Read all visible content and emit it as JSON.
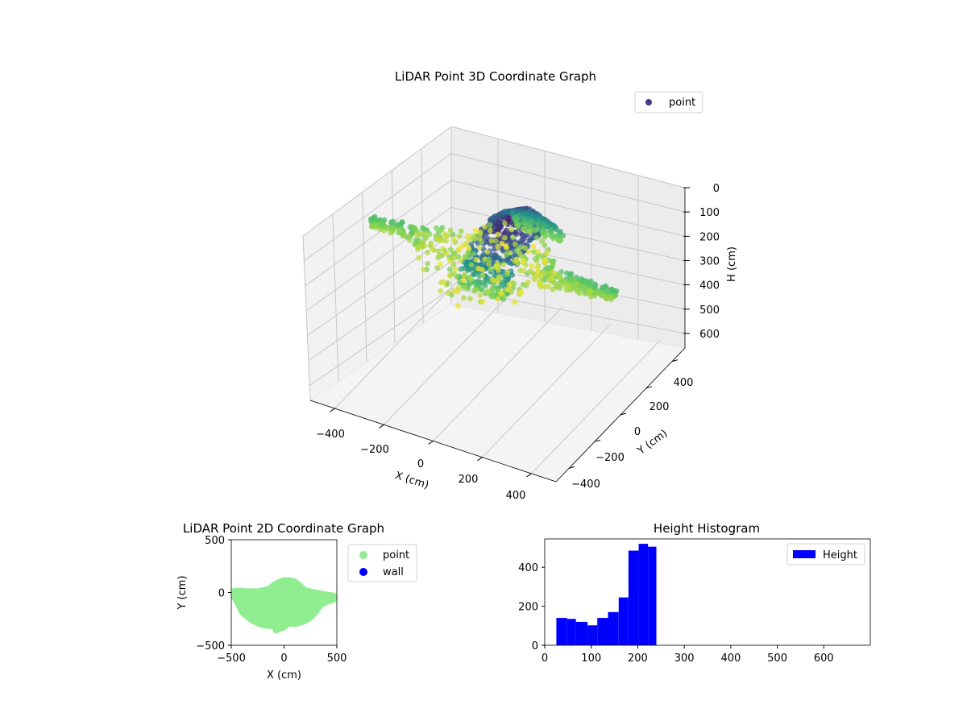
{
  "figure": {
    "colors": {
      "viridis": [
        "#440154",
        "#3b528b",
        "#21918c",
        "#5ec962",
        "#fde725"
      ],
      "point_2d": "#90ee90",
      "wall_2d": "#0000ff",
      "hist_bar": "#0000ff",
      "legend_point_3d": "#3b3f8c"
    }
  },
  "chart_data": [
    {
      "id": "lidar3d",
      "type": "scatter",
      "title": "LiDAR Point 3D Coordinate Graph",
      "xlabel": "X (cm)",
      "ylabel": "Y (cm)",
      "zlabel": "H (cm)",
      "xlim": [
        -500,
        500
      ],
      "ylim": [
        -500,
        500
      ],
      "zlim": [
        660,
        0
      ],
      "z_inverted": true,
      "x_ticks": [
        -400,
        -200,
        0,
        200,
        400
      ],
      "y_ticks": [
        -400,
        -200,
        0,
        200,
        400
      ],
      "z_ticks": [
        0,
        100,
        200,
        300,
        400,
        500,
        600
      ],
      "x_tick_labels": [
        "−400",
        "−200",
        "0",
        "200",
        "400"
      ],
      "y_tick_labels": [
        "−400",
        "−200",
        "0",
        "200",
        "400"
      ],
      "z_tick_labels": [
        "0",
        "100",
        "200",
        "300",
        "400",
        "500",
        "600"
      ],
      "legend": [
        "point"
      ],
      "legend_position": "top-right",
      "grid": true,
      "colormap": "viridis",
      "color_by": "height",
      "series": [
        {
          "name": "point",
          "profile": {
            "y_center": [
              -30,
              -20,
              -10,
              0,
              5,
              10,
              12,
              0,
              -15,
              -10,
              0,
              5,
              10,
              10,
              5,
              10,
              5,
              15
            ],
            "y_half": [
              5,
              10,
              15,
              60,
              120,
              190,
              230,
              250,
              260,
              255,
              240,
              200,
              150,
              60,
              40,
              25,
              15,
              5
            ],
            "x": [
              -500,
              -450,
              -400,
              -300,
              -250,
              -200,
              -150,
              -100,
              -50,
              0,
              50,
              100,
              150,
              200,
              250,
              300,
              400,
              480
            ],
            "h_center": [
              200,
              200,
              200,
              210,
              220,
              230,
              230,
              230,
              230,
              230,
              230,
              230,
              230,
              220,
              210,
              200,
              200,
              200
            ],
            "dome_x_range": [
              -50,
              150
            ],
            "dome_top_h": 20
          }
        }
      ]
    },
    {
      "id": "lidar2d",
      "type": "scatter",
      "title": "LiDAR Point 2D Coordinate Graph",
      "xlabel": "X (cm)",
      "ylabel": "Y (cm)",
      "xlim": [
        -500,
        500
      ],
      "ylim": [
        -500,
        500
      ],
      "x_ticks": [
        -500,
        0,
        500
      ],
      "y_ticks": [
        -500,
        0,
        500
      ],
      "x_tick_labels": [
        "−500",
        "0",
        "500"
      ],
      "y_tick_labels": [
        "−500",
        "0",
        "500"
      ],
      "legend": [
        "point",
        "wall"
      ],
      "legend_position": "outside-right",
      "series": [
        {
          "name": "point",
          "outline": [
            [
              -480,
              20
            ],
            [
              -450,
              25
            ],
            [
              -350,
              20
            ],
            [
              -250,
              20
            ],
            [
              -150,
              40
            ],
            [
              -100,
              80
            ],
            [
              -50,
              110
            ],
            [
              0,
              125
            ],
            [
              50,
              125
            ],
            [
              100,
              115
            ],
            [
              150,
              80
            ],
            [
              200,
              30
            ],
            [
              300,
              10
            ],
            [
              400,
              -10
            ],
            [
              470,
              -20
            ],
            [
              500,
              -40
            ],
            [
              470,
              -80
            ],
            [
              400,
              -100
            ],
            [
              350,
              -130
            ],
            [
              300,
              -200
            ],
            [
              250,
              -250
            ],
            [
              200,
              -280
            ],
            [
              100,
              -310
            ],
            [
              50,
              -300
            ],
            [
              0,
              -340
            ],
            [
              -80,
              -370
            ],
            [
              -100,
              -330
            ],
            [
              -200,
              -320
            ],
            [
              -300,
              -280
            ],
            [
              -400,
              -200
            ],
            [
              -450,
              -100
            ],
            [
              -480,
              -50
            ]
          ]
        },
        {
          "name": "wall",
          "points": []
        }
      ]
    },
    {
      "id": "heighthist",
      "type": "bar",
      "title": "Height Histogram",
      "xlabel": "",
      "ylabel": "",
      "xlim": [
        0,
        700
      ],
      "ylim": [
        0,
        545
      ],
      "x_ticks": [
        0,
        100,
        200,
        300,
        400,
        500,
        600
      ],
      "y_ticks": [
        0,
        200,
        400
      ],
      "legend": [
        "Height"
      ],
      "legend_position": "top-right",
      "bin_edges": [
        25,
        48,
        67,
        92,
        113,
        136,
        159,
        180,
        202,
        222,
        240
      ],
      "series": [
        {
          "name": "Height",
          "values": [
            140,
            135,
            120,
            102,
            140,
            170,
            245,
            485,
            520,
            505
          ]
        }
      ]
    }
  ]
}
